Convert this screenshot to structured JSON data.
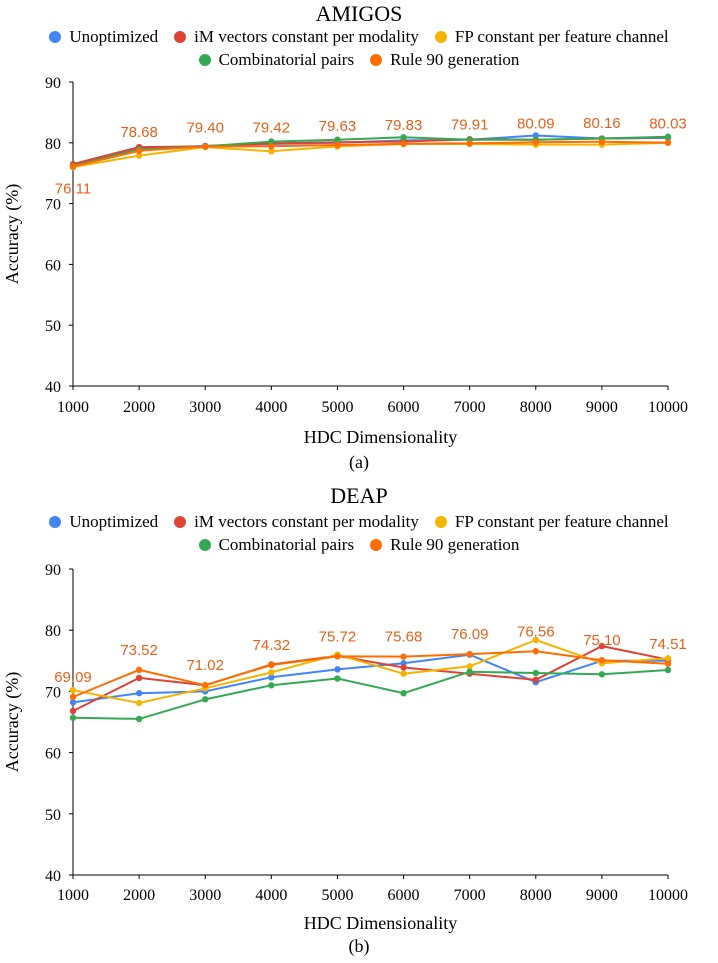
{
  "series_styles": [
    {
      "name": "Unoptimized",
      "color": "#4285f4"
    },
    {
      "name": "iM vectors constant per modality",
      "color": "#db4437"
    },
    {
      "name": "FP constant per feature channel",
      "color": "#f4b400"
    },
    {
      "name": "Combinatorial pairs",
      "color": "#34a853"
    },
    {
      "name": "Rule 90 generation",
      "color": "#ff6d01"
    }
  ],
  "chart_data": [
    {
      "type": "line",
      "title": "AMIGOS",
      "caption": "(a)",
      "xlabel": "HDC Dimensionality",
      "ylabel": "Accuracy (%)",
      "x": [
        1000,
        2000,
        3000,
        4000,
        5000,
        6000,
        7000,
        8000,
        9000,
        10000
      ],
      "ylim": [
        40,
        90
      ],
      "yticks": [
        40,
        50,
        60,
        70,
        80,
        90
      ],
      "grid": false,
      "legend_position": "top",
      "series": [
        {
          "name": "Unoptimized",
          "values": [
            76.3,
            79.0,
            79.5,
            79.8,
            80.0,
            80.4,
            80.5,
            81.2,
            80.7,
            80.8
          ]
        },
        {
          "name": "iM vectors constant per modality",
          "values": [
            76.5,
            79.3,
            79.4,
            79.9,
            80.1,
            80.2,
            80.6,
            80.5,
            80.7,
            80.9
          ]
        },
        {
          "name": "FP constant per feature channel",
          "values": [
            76.0,
            77.9,
            79.3,
            78.6,
            79.4,
            79.8,
            79.8,
            79.7,
            79.7,
            80.0
          ]
        },
        {
          "name": "Combinatorial pairs",
          "values": [
            76.2,
            78.9,
            79.4,
            80.2,
            80.5,
            80.9,
            80.5,
            80.5,
            80.7,
            81.0
          ]
        },
        {
          "name": "Rule 90 generation",
          "values": [
            76.11,
            78.68,
            79.4,
            79.42,
            79.63,
            79.83,
            79.91,
            80.09,
            80.16,
            80.03
          ]
        }
      ],
      "data_labels": [
        "76.11",
        "78.68",
        "79.40",
        "79.42",
        "79.63",
        "79.83",
        "79.91",
        "80.09",
        "80.16",
        "80.03"
      ]
    },
    {
      "type": "line",
      "title": "DEAP",
      "caption": "(b)",
      "xlabel": "HDC Dimensionality",
      "ylabel": "Accuracy (%)",
      "x": [
        1000,
        2000,
        3000,
        4000,
        5000,
        6000,
        7000,
        8000,
        9000,
        10000
      ],
      "ylim": [
        40,
        90
      ],
      "yticks": [
        40,
        50,
        60,
        70,
        80,
        90
      ],
      "grid": false,
      "legend_position": "top",
      "series": [
        {
          "name": "Unoptimized",
          "values": [
            68.2,
            69.7,
            70.0,
            72.3,
            73.6,
            74.6,
            76.0,
            71.5,
            75.0,
            75.0
          ]
        },
        {
          "name": "iM vectors constant per modality",
          "values": [
            66.8,
            72.2,
            71.0,
            74.4,
            75.8,
            73.9,
            72.9,
            71.9,
            77.4,
            75.2
          ]
        },
        {
          "name": "FP constant per feature channel",
          "values": [
            70.2,
            68.1,
            70.5,
            73.1,
            76.0,
            72.9,
            74.1,
            78.4,
            74.6,
            75.4
          ]
        },
        {
          "name": "Combinatorial pairs",
          "values": [
            65.7,
            65.5,
            68.7,
            71.0,
            72.1,
            69.7,
            73.2,
            73.0,
            72.8,
            73.5
          ]
        },
        {
          "name": "Rule 90 generation",
          "values": [
            69.09,
            73.52,
            71.02,
            74.32,
            75.72,
            75.68,
            76.09,
            76.56,
            75.1,
            74.51
          ]
        }
      ],
      "data_labels": [
        "69.09",
        "73.52",
        "71.02",
        "74.32",
        "75.72",
        "75.68",
        "76.09",
        "76.56",
        "75.10",
        "74.51"
      ]
    }
  ]
}
